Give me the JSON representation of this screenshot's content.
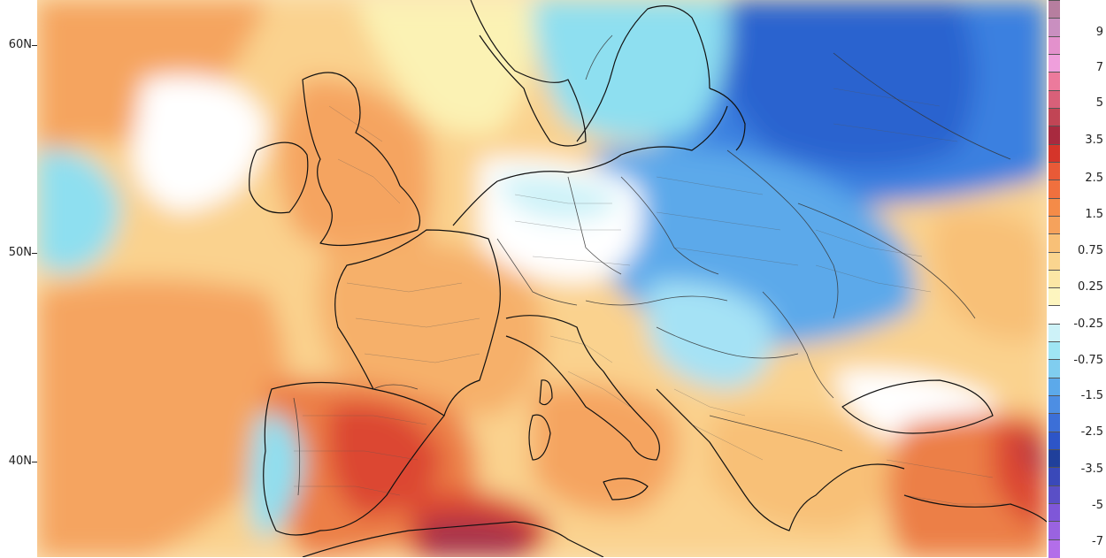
{
  "map": {
    "type": "anomaly-map",
    "region": "Europe",
    "latitude_labels": [
      "60N",
      "50N",
      "40N"
    ],
    "colors": {
      "strong_blue": "#2a63cf",
      "blue": "#3b80e0",
      "light_blue": "#7bbdf0",
      "cyan": "#8edff0",
      "white": "#ffffff",
      "light_yellow": "#fbf2b4",
      "pale_orange": "#fbd99a",
      "orange": "#f5a461",
      "dark_orange": "#ec7f47",
      "red": "#dc4733",
      "dark_red": "#a7314a",
      "border_dark": "#111111",
      "border_light": "#555555"
    }
  },
  "legend": {
    "labels": [
      "9",
      "7",
      "5",
      "3.5",
      "2.5",
      "1.5",
      "0.75",
      "0.25",
      "-0.25",
      "-0.75",
      "-1.5",
      "-2.5",
      "-3.5",
      "-5",
      "-7"
    ],
    "swatches": [
      {
        "color": "#b67e9f"
      },
      {
        "color": "#c98fc0"
      },
      {
        "color": "#e391cc"
      },
      {
        "color": "#ef9fdc"
      },
      {
        "color": "#ec7a9c"
      },
      {
        "color": "#d86079"
      },
      {
        "color": "#c14555"
      },
      {
        "color": "#a82a3f"
      },
      {
        "color": "#d5352a"
      },
      {
        "color": "#e85a37"
      },
      {
        "color": "#f0703e"
      },
      {
        "color": "#f48b48"
      },
      {
        "color": "#f5a25c"
      },
      {
        "color": "#f8c077"
      },
      {
        "color": "#fad58f"
      },
      {
        "color": "#fce7a5"
      },
      {
        "color": "#fdf5bf"
      },
      {
        "color": "#ffffff"
      },
      {
        "color": "#cdf2f8"
      },
      {
        "color": "#9fe5f4"
      },
      {
        "color": "#80cdef"
      },
      {
        "color": "#5ca9ea"
      },
      {
        "color": "#4d8ee3"
      },
      {
        "color": "#3c6fd7"
      },
      {
        "color": "#2d55c7"
      },
      {
        "color": "#20409b"
      },
      {
        "color": "#3a49b9"
      },
      {
        "color": "#5a4fc6"
      },
      {
        "color": "#7f57d8"
      },
      {
        "color": "#9a63e0"
      },
      {
        "color": "#b36ee9"
      }
    ]
  }
}
